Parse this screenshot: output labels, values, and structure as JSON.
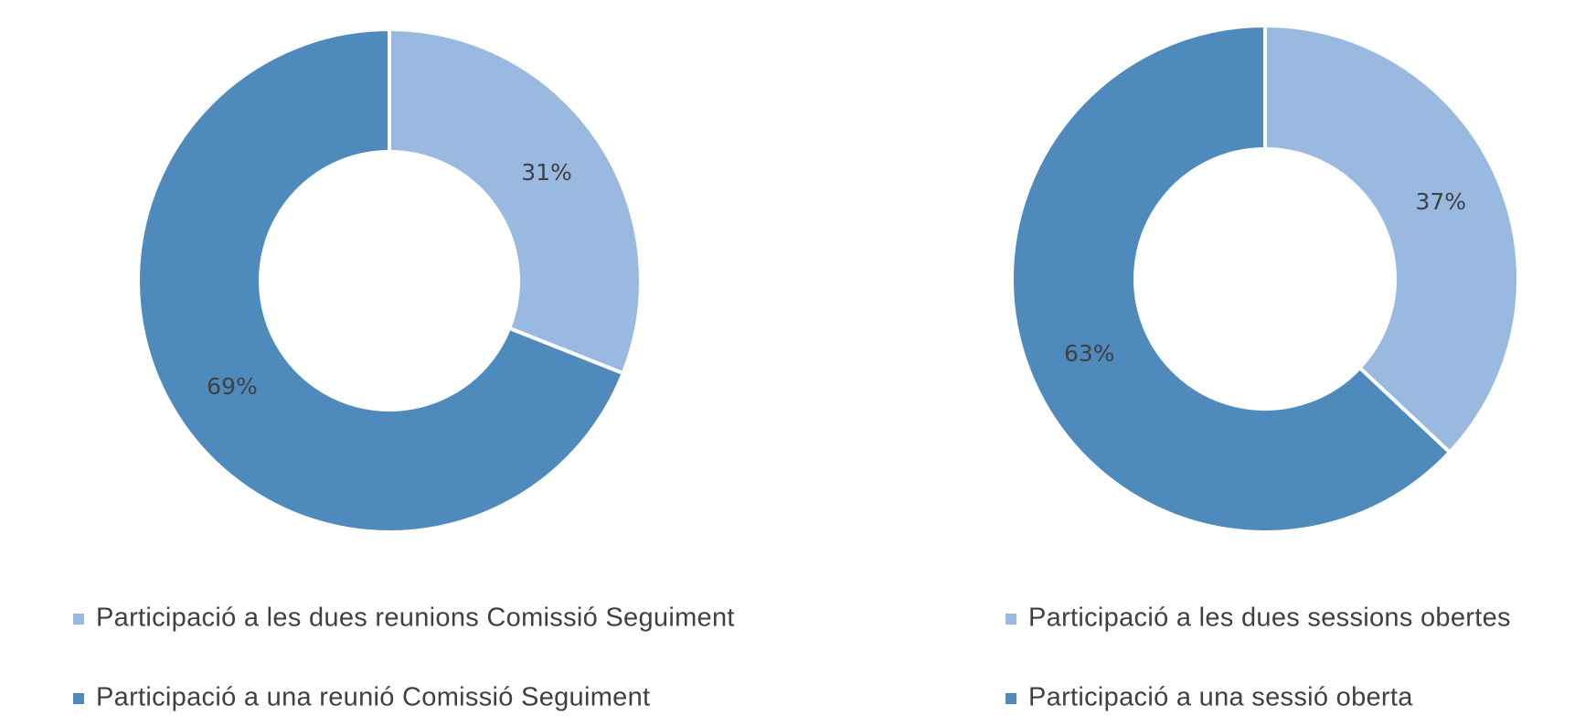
{
  "chart_data": [
    {
      "type": "donut",
      "categories": [
        "Participació a les dues reunions Comissió Seguiment",
        "Participació a una reunió Comissió Seguiment"
      ],
      "values": [
        31,
        69
      ],
      "value_labels": [
        "31%",
        "69%"
      ],
      "colors": [
        "#99b9e0",
        "#4f8abd"
      ]
    },
    {
      "type": "donut",
      "categories": [
        "Participació a les dues sessions obertes",
        "Participació a una sessió oberta"
      ],
      "values": [
        37,
        63
      ],
      "value_labels": [
        "37%",
        "63%"
      ],
      "colors": [
        "#99b9e0",
        "#4f8abd"
      ]
    }
  ]
}
